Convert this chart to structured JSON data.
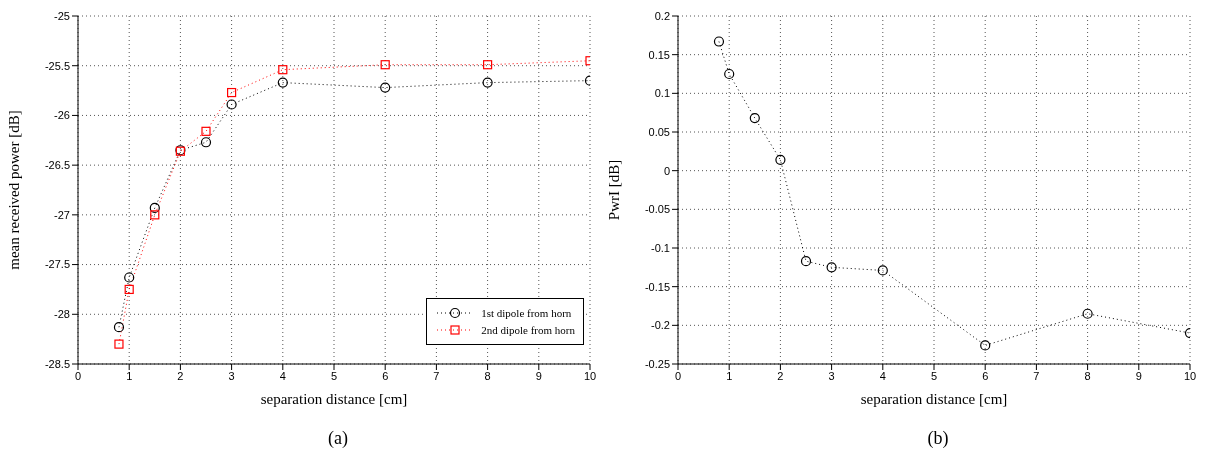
{
  "chart_data": [
    {
      "type": "line",
      "xlabel": "separation distance [cm]",
      "ylabel": "mean received power [dB]",
      "x": [
        0.8,
        1,
        1.5,
        2,
        2.5,
        3,
        4,
        6,
        8,
        10
      ],
      "xlim": [
        0,
        10
      ],
      "xticks": [
        0,
        1,
        2,
        3,
        4,
        5,
        6,
        7,
        8,
        9,
        10
      ],
      "ylim": [
        -28.5,
        -25
      ],
      "yticks": [
        -28.5,
        -28,
        -27.5,
        -27,
        -26.5,
        -26,
        -25.5,
        -25
      ],
      "grid": true,
      "legend": "bottom right",
      "line_style": "dotted",
      "annotations": [
        "(a)"
      ],
      "series": [
        {
          "name": "1st dipole from horn",
          "color": "#000000",
          "marker": "circle",
          "values": [
            -28.13,
            -27.63,
            -26.93,
            -26.35,
            -26.27,
            -25.89,
            -25.67,
            -25.72,
            -25.67,
            -25.65
          ]
        },
        {
          "name": "2nd dipole from horn",
          "color": "#ff0000",
          "marker": "square",
          "values": [
            -28.3,
            -27.75,
            -27.0,
            -26.36,
            -26.16,
            -25.77,
            -25.54,
            -25.49,
            -25.49,
            -25.45
          ]
        }
      ]
    },
    {
      "type": "line",
      "xlabel": "separation distance [cm]",
      "ylabel": "PwrI [dB]",
      "x": [
        0.8,
        1,
        1.5,
        2,
        2.5,
        3,
        4,
        6,
        8,
        10
      ],
      "xlim": [
        0,
        10
      ],
      "xticks": [
        0,
        1,
        2,
        3,
        4,
        5,
        6,
        7,
        8,
        9,
        10
      ],
      "ylim": [
        -0.25,
        0.2
      ],
      "yticks": [
        -0.25,
        -0.2,
        -0.15,
        -0.1,
        -0.05,
        0,
        0.05,
        0.1,
        0.15,
        0.2
      ],
      "grid": true,
      "marker": "circle",
      "line_style": "dotted",
      "annotations": [
        "(b)"
      ],
      "series": [
        {
          "color": "#000000",
          "values": [
            0.167,
            0.125,
            0.068,
            0.014,
            -0.117,
            -0.125,
            -0.129,
            -0.226,
            -0.185,
            -0.21
          ]
        }
      ]
    }
  ]
}
